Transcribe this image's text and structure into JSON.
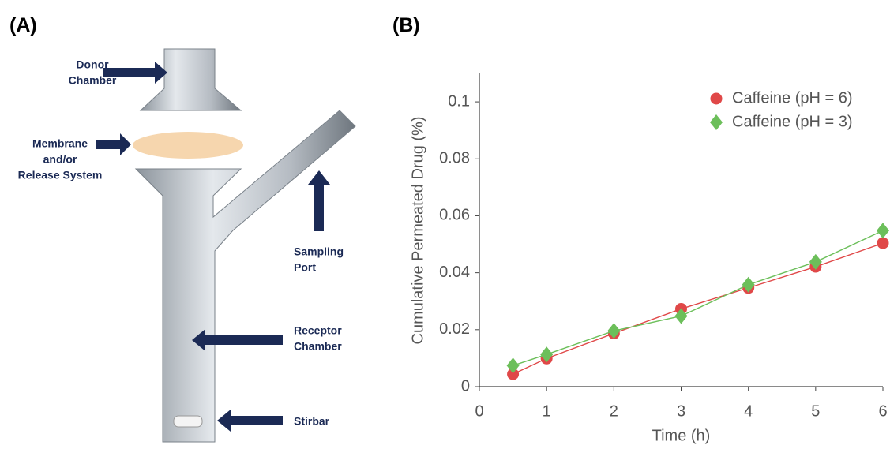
{
  "figure": {
    "panel_a_label": "(A)",
    "panel_b_label": "(B)",
    "labels": [
      {
        "lines": [
          "Donor",
          "Chamber"
        ]
      },
      {
        "lines": [
          "Membrane",
          "and/or",
          "Release System"
        ]
      },
      {
        "lines": [
          "Sampling",
          "Port"
        ]
      },
      {
        "lines": [
          "Receptor",
          "Chamber"
        ]
      },
      {
        "lines": [
          "Stirbar"
        ]
      }
    ]
  },
  "chart_data": {
    "type": "line",
    "xlabel": "Time (h)",
    "ylabel": "Cumulative Permeated Drug (%)",
    "xlim": [
      0,
      6
    ],
    "xticks": [
      0,
      1,
      2,
      3,
      4,
      5,
      6
    ],
    "ylim": [
      0,
      0.11
    ],
    "yticks": [
      0,
      0.02,
      0.04,
      0.06,
      0.08,
      0.1
    ],
    "legend": "upper right",
    "series": [
      {
        "name": "Caffeine (pH = 6)",
        "color": "#e04848",
        "marker": "circle",
        "x": [
          0.5,
          1,
          2,
          3,
          4,
          5,
          6
        ],
        "values": [
          0.0044,
          0.0099,
          0.0187,
          0.0273,
          0.0347,
          0.0421,
          0.0504
        ]
      },
      {
        "name": "Caffeine (pH = 3)",
        "color": "#6cbf5a",
        "marker": "diamond",
        "x": [
          0.5,
          1,
          2,
          3,
          4,
          5,
          6
        ],
        "values": [
          0.0074,
          0.0113,
          0.0196,
          0.0248,
          0.0358,
          0.0438,
          0.0548
        ]
      }
    ]
  }
}
